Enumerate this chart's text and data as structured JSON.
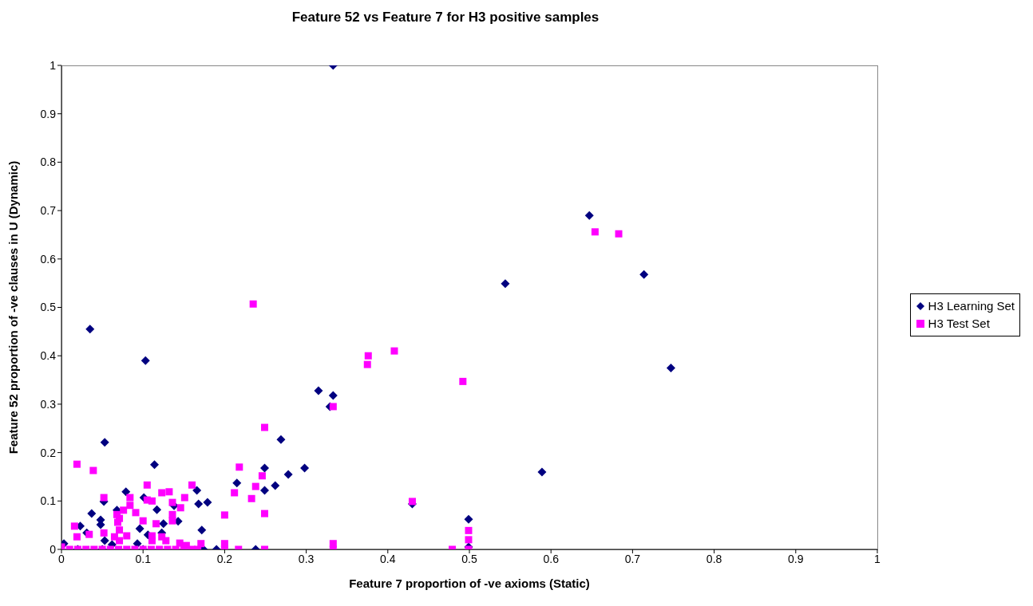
{
  "chart_data": {
    "type": "scatter",
    "title": "Feature 52 vs Feature 7 for H3 positive samples",
    "xlabel": "Feature 7 proportion of -ve axioms (Static)",
    "ylabel": "Feature 52 proportion of -ve clauses in U (Dynamic)",
    "xlim": [
      0,
      1
    ],
    "ylim": [
      0,
      1
    ],
    "xticks": [
      0,
      0.1,
      0.2,
      0.3,
      0.4,
      0.5,
      0.6,
      0.7,
      0.8,
      0.9,
      1
    ],
    "yticks": [
      0,
      0.1,
      0.2,
      0.3,
      0.4,
      0.5,
      0.6,
      0.7,
      0.8,
      0.9,
      1
    ],
    "grid": false,
    "legend": "right",
    "series": [
      {
        "name": "H3 Learning Set",
        "color": "#000080",
        "marker": "diamond",
        "x": [
          0.333,
          0.035,
          0.103,
          0.053,
          0.647,
          0.714,
          0.747,
          0.544,
          0.589,
          0.499,
          0.499,
          0.43,
          0.315,
          0.333,
          0.329,
          0.269,
          0.249,
          0.298,
          0.278,
          0.262,
          0.249,
          0.238,
          0.215,
          0.166,
          0.168,
          0.179,
          0.138,
          0.143,
          0.125,
          0.172,
          0.123,
          0.174,
          0.19,
          0.114,
          0.079,
          0.101,
          0.052,
          0.117,
          0.068,
          0.037,
          0.048,
          0.048,
          0.023,
          0.096,
          0.031,
          0.053,
          0.106,
          0.003,
          0.093,
          0.062,
          0.02,
          0.05,
          0.1
        ],
        "values": [
          1,
          0.455,
          0.39,
          0.221,
          0.69,
          0.568,
          0.375,
          0.549,
          0.16,
          0.062,
          0.005,
          0.094,
          0.328,
          0.318,
          0.295,
          0.227,
          0.168,
          0.168,
          0.155,
          0.132,
          0.122,
          0,
          0.137,
          0.122,
          0.094,
          0.097,
          0.09,
          0.058,
          0.053,
          0.04,
          0.034,
          0,
          0,
          0.175,
          0.119,
          0.107,
          0.099,
          0.082,
          0.081,
          0.074,
          0.061,
          0.051,
          0.048,
          0.043,
          0.034,
          0.018,
          0.03,
          0.012,
          0.012,
          0.01,
          0,
          0,
          0
        ]
      },
      {
        "name": "H3 Test Set",
        "color": "#ff00ff",
        "marker": "square",
        "x": [
          0.235,
          0.376,
          0.375,
          0.408,
          0.492,
          0.654,
          0.683,
          0.333,
          0.249,
          0.246,
          0.238,
          0.233,
          0.249,
          0.43,
          0.499,
          0.499,
          0.499,
          0.479,
          0.333,
          0.333,
          0.249,
          0.217,
          0.218,
          0.212,
          0.2,
          0.2,
          0.2,
          0.16,
          0.151,
          0.132,
          0.123,
          0.136,
          0.146,
          0.136,
          0.136,
          0.123,
          0.128,
          0.145,
          0.153,
          0.171,
          0.019,
          0.039,
          0.105,
          0.084,
          0.105,
          0.111,
          0.052,
          0.084,
          0.091,
          0.068,
          0.076,
          0.071,
          0.069,
          0.1,
          0.116,
          0.016,
          0.071,
          0.019,
          0.034,
          0.052,
          0.08,
          0.111,
          0.065,
          0.071,
          0.111,
          0.01,
          0.02,
          0.03,
          0.04,
          0.05,
          0.06,
          0.07,
          0.08,
          0.09,
          0.1,
          0.11,
          0.12,
          0.13,
          0.14,
          0.15,
          0.16,
          0.167,
          0
        ],
        "values": [
          0.507,
          0.4,
          0.382,
          0.41,
          0.347,
          0.656,
          0.652,
          0.295,
          0.252,
          0.152,
          0.13,
          0.105,
          0.074,
          0.099,
          0.039,
          0.02,
          0,
          0,
          0.012,
          0,
          0,
          0,
          0.17,
          0.117,
          0.071,
          0.012,
          0,
          0.133,
          0.107,
          0.119,
          0.117,
          0.097,
          0.086,
          0.072,
          0.059,
          0.026,
          0.018,
          0.013,
          0.008,
          0.012,
          0.176,
          0.163,
          0.133,
          0.107,
          0.102,
          0.1,
          0.107,
          0.091,
          0.076,
          0.072,
          0.081,
          0.064,
          0.056,
          0.059,
          0.053,
          0.048,
          0.04,
          0.026,
          0.031,
          0.034,
          0.028,
          0.028,
          0.026,
          0.018,
          0.018,
          0,
          0,
          0,
          0,
          0,
          0,
          0,
          0,
          0,
          0,
          0,
          0,
          0,
          0,
          0,
          0,
          0,
          0.005
        ]
      }
    ]
  }
}
